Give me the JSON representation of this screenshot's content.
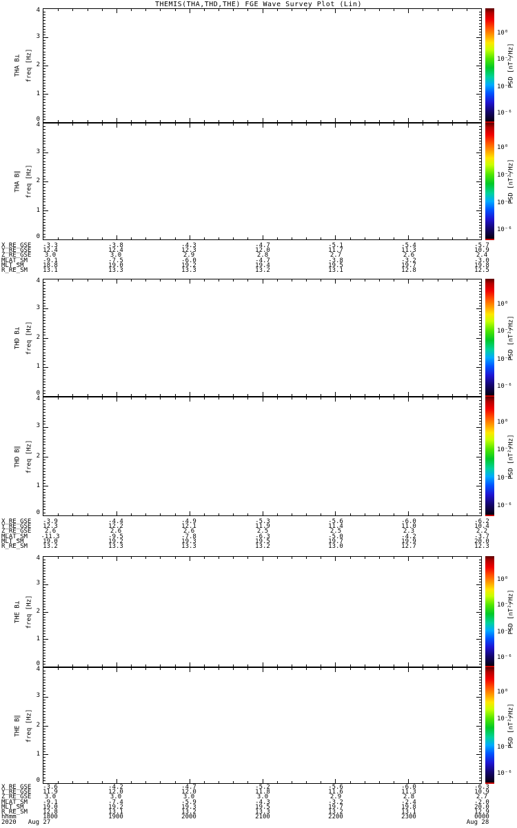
{
  "title": "THEMIS(THA,THD,THE) FGE Wave Survey Plot (Lin)",
  "chart_data": {
    "type": "heatmap",
    "title": "THEMIS(THA,THD,THE) FGE Wave Survey Plot (Lin)",
    "note": "Six stacked wave-power spectrogram panels; interiors contain no rendered PSD data (blank white).",
    "panels": [
      {
        "name": "THA B⊥"
      },
      {
        "name": "THA B∥"
      },
      {
        "name": "THD B⊥"
      },
      {
        "name": "THD B∥"
      },
      {
        "name": "THE B⊥"
      },
      {
        "name": "THE B∥"
      }
    ],
    "y_axis": {
      "label": "freq [Hz]",
      "ylim": [
        0,
        4
      ],
      "ticks": [
        "0",
        "1",
        "2",
        "3",
        "4"
      ]
    },
    "colorbar": {
      "label": "PSD [nT²/Hz]",
      "tick_labels": [
        "10⁰",
        "10⁻²",
        "10⁻⁴",
        "10⁻⁶"
      ]
    },
    "time_axis": {
      "hhmm_label": "hhmm",
      "times": [
        "1800",
        "1900",
        "2000",
        "2100",
        "2200",
        "2300",
        "0000"
      ],
      "year": "2020",
      "start_date": "Aug 27",
      "end_date": "Aug 28"
    },
    "ephemeris_tables": [
      {
        "spacecraft": "THA",
        "rows": [
          {
            "label": "X_RE_GSE",
            "values": [
              "-3.3",
              "-3.8",
              "-4.3",
              "-4.7",
              "-5.1",
              "-5.4",
              "-5.7"
            ]
          },
          {
            "label": "Y_RE_GSE",
            "values": [
              "12.4",
              "12.4",
              "12.3",
              "12.0",
              "11.7",
              "11.3",
              "10.9"
            ]
          },
          {
            "label": "Z_RE_GSE",
            "values": [
              "3.0",
              "3.0",
              "2.9",
              "2.8",
              "2.7",
              "2.6",
              "2.4"
            ]
          },
          {
            "label": "MLAT_SM",
            "values": [
              "-9.1",
              "-7.5",
              "-6.0",
              "-4.7",
              "-3.8",
              "-3.2",
              "-3.0"
            ]
          },
          {
            "label": "MLT_SM",
            "values": [
              "18.8",
              "19.0",
              "19.2",
              "19.4",
              "19.5",
              "19.7",
              "19.8"
            ]
          },
          {
            "label": "R_RE_SM",
            "values": [
              "13.1",
              "13.3",
              "13.3",
              "13.2",
              "13.1",
              "12.8",
              "12.5"
            ]
          }
        ]
      },
      {
        "spacecraft": "THD",
        "rows": [
          {
            "label": "X_RE_GSE",
            "values": [
              "-3.9",
              "-4.4",
              "-4.9",
              "-5.3",
              "-5.6",
              "-6.0",
              "-6.2"
            ]
          },
          {
            "label": "Y_RE_GSE",
            "values": [
              "12.3",
              "12.2",
              "12.1",
              "11.9",
              "11.4",
              "11.0",
              "10.4"
            ]
          },
          {
            "label": "Z_RE_GSE",
            "values": [
              "2.6",
              "2.6",
              "2.6",
              "2.5",
              "2.5",
              "2.3",
              "2.2"
            ]
          },
          {
            "label": "MLAT_SM",
            "values": [
              "-11.3",
              "-9.5",
              "-7.8",
              "-6.3",
              "-5.0",
              "-4.2",
              "-3.7"
            ]
          },
          {
            "label": "MLT_SM",
            "values": [
              "19.0",
              "19.2",
              "19.3",
              "19.5",
              "19.7",
              "19.9",
              "20.0"
            ]
          },
          {
            "label": "R_RE_SM",
            "values": [
              "13.2",
              "13.3",
              "13.3",
              "13.2",
              "13.0",
              "12.7",
              "12.3"
            ]
          }
        ]
      },
      {
        "spacecraft": "THE",
        "rows": [
          {
            "label": "X_RE_GSE",
            "values": [
              "-3.6",
              "-4.2",
              "-4.7",
              "-5.2",
              "-5.6",
              "-6.0",
              "-6.3"
            ]
          },
          {
            "label": "Y_RE_GSE",
            "values": [
              "11.9",
              "12.0",
              "12.0",
              "11.8",
              "11.6",
              "11.3",
              "10.9"
            ]
          },
          {
            "label": "Z_RE_GSE",
            "values": [
              "3.0",
              "3.0",
              "3.0",
              "3.0",
              "2.9",
              "2.8",
              "2.7"
            ]
          },
          {
            "label": "MLAT_SM",
            "values": [
              "-9.1",
              "-7.4",
              "-5.9",
              "-4.3",
              "-3.2",
              "-2.4",
              "-2.0"
            ]
          },
          {
            "label": "MLT_SM",
            "values": [
              "19.0",
              "19.2",
              "19.3",
              "19.5",
              "19.7",
              "19.8",
              "20.0"
            ]
          },
          {
            "label": "R_RE_SM",
            "values": [
              "12.8",
              "13.1",
              "13.2",
              "13.3",
              "13.2",
              "13.1",
              "12.9"
            ]
          }
        ]
      }
    ]
  }
}
